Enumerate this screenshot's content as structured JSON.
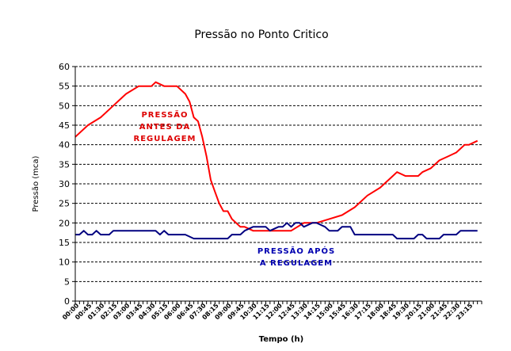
{
  "chart_data": {
    "type": "line",
    "title": "Pressão no Ponto Critico",
    "xlabel": "Tempo (h)",
    "ylabel": "Pressão (mca)",
    "ylim": [
      0,
      60
    ],
    "yticks": [
      0,
      5,
      10,
      15,
      20,
      25,
      30,
      35,
      40,
      45,
      50,
      55,
      60
    ],
    "grid": true,
    "xtick_labels": [
      "00:00",
      "00:45",
      "01:30",
      "02:15",
      "03:00",
      "03:45",
      "04:30",
      "05:15",
      "06:00",
      "06:45",
      "07:30",
      "08:15",
      "09:00",
      "09:45",
      "10:30",
      "11:15",
      "12:00",
      "12:45",
      "13:30",
      "14:15",
      "15:00",
      "15:45",
      "16:30",
      "17:15",
      "18:00",
      "18:45",
      "19:30",
      "20:15",
      "21:00",
      "21:45",
      "22:30",
      "23:15"
    ],
    "annotations": [
      {
        "lines": [
          "PRESSÃO",
          "ANTES DA",
          "REGULAGEM"
        ],
        "color": "#dd0000"
      },
      {
        "lines": [
          "PRESSÃO APÓS",
          "A REGULAGEM"
        ],
        "color": "#0000b0"
      }
    ],
    "series": [
      {
        "color": "#ff0000",
        "x": [
          "00:00",
          "00:45",
          "01:30",
          "02:15",
          "03:00",
          "03:45",
          "04:30",
          "04:45",
          "05:15",
          "06:00",
          "06:30",
          "06:45",
          "07:00",
          "07:15",
          "07:30",
          "07:45",
          "08:00",
          "08:15",
          "08:30",
          "08:45",
          "09:00",
          "09:15",
          "09:45",
          "10:00",
          "10:30",
          "11:15",
          "12:00",
          "12:45",
          "13:30",
          "14:15",
          "15:00",
          "15:45",
          "16:30",
          "17:15",
          "18:00",
          "18:45",
          "19:00",
          "19:30",
          "20:15",
          "20:30",
          "21:00",
          "21:30",
          "22:00",
          "22:30",
          "23:00",
          "23:15",
          "23:45"
        ],
        "values": [
          42,
          45,
          47,
          50,
          53,
          55,
          55,
          56,
          55,
          55,
          53,
          51,
          47,
          46,
          42,
          37,
          31,
          28,
          25,
          23,
          23,
          21,
          19,
          19,
          18,
          18,
          18,
          18,
          20,
          20,
          21,
          22,
          24,
          27,
          29,
          32,
          33,
          32,
          32,
          33,
          34,
          36,
          37,
          38,
          40,
          40,
          41
        ]
      },
      {
        "color": "#000080",
        "x": [
          "00:00",
          "00:15",
          "00:30",
          "00:45",
          "01:00",
          "01:15",
          "01:30",
          "01:45",
          "02:00",
          "02:15",
          "04:45",
          "05:00",
          "05:15",
          "05:30",
          "06:30",
          "07:00",
          "09:00",
          "09:15",
          "09:45",
          "10:00",
          "10:30",
          "11:15",
          "11:30",
          "12:00",
          "12:15",
          "12:30",
          "12:45",
          "13:00",
          "13:15",
          "13:30",
          "14:00",
          "14:15",
          "14:45",
          "15:00",
          "15:15",
          "15:30",
          "15:45",
          "16:15",
          "16:30",
          "17:15",
          "18:00",
          "18:45",
          "19:00",
          "19:30",
          "20:00",
          "20:15",
          "20:30",
          "20:45",
          "21:00",
          "21:30",
          "21:45",
          "22:00",
          "22:30",
          "22:45",
          "23:00",
          "23:45"
        ],
        "values": [
          17,
          17,
          18,
          17,
          17,
          18,
          17,
          17,
          17,
          18,
          18,
          17,
          18,
          17,
          17,
          16,
          16,
          17,
          17,
          18,
          19,
          19,
          18,
          19,
          19,
          20,
          19,
          20,
          20,
          19,
          20,
          20,
          19,
          18,
          18,
          18,
          19,
          19,
          17,
          17,
          17,
          17,
          16,
          16,
          16,
          17,
          17,
          16,
          16,
          16,
          17,
          17,
          17,
          18,
          18,
          18
        ]
      }
    ]
  }
}
